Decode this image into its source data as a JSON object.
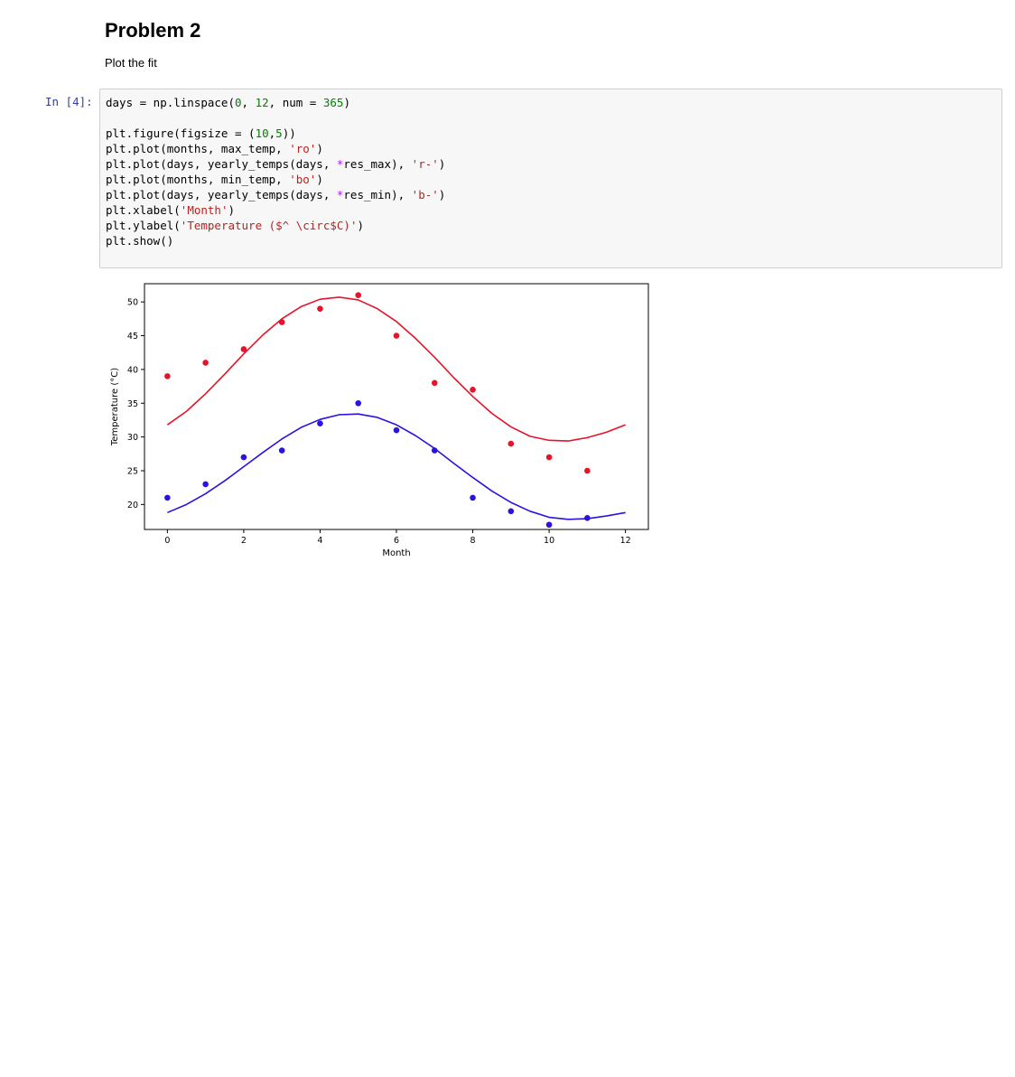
{
  "heading": "Problem 2",
  "description": "Plot the fit",
  "cell": {
    "prompt": "In [4]:",
    "code_lines": [
      [
        {
          "t": "days = np.linspace("
        },
        {
          "t": "0",
          "c": "num"
        },
        {
          "t": ", "
        },
        {
          "t": "12",
          "c": "num"
        },
        {
          "t": ", num = "
        },
        {
          "t": "365",
          "c": "num"
        },
        {
          "t": ")"
        }
      ],
      [],
      [
        {
          "t": "plt.figure(figsize = ("
        },
        {
          "t": "10",
          "c": "num"
        },
        {
          "t": ","
        },
        {
          "t": "5",
          "c": "num"
        },
        {
          "t": "))"
        }
      ],
      [
        {
          "t": "plt.plot(months, max_temp, "
        },
        {
          "t": "'ro'",
          "c": "str"
        },
        {
          "t": ")"
        }
      ],
      [
        {
          "t": "plt.plot(days, yearly_temps(days, "
        },
        {
          "t": "*",
          "c": "op"
        },
        {
          "t": "res_max), "
        },
        {
          "t": "'r-'",
          "c": "str"
        },
        {
          "t": ")"
        }
      ],
      [
        {
          "t": "plt.plot(months, min_temp, "
        },
        {
          "t": "'bo'",
          "c": "str"
        },
        {
          "t": ")"
        }
      ],
      [
        {
          "t": "plt.plot(days, yearly_temps(days, "
        },
        {
          "t": "*",
          "c": "op"
        },
        {
          "t": "res_min), "
        },
        {
          "t": "'b-'",
          "c": "str"
        },
        {
          "t": ")"
        }
      ],
      [
        {
          "t": "plt.xlabel("
        },
        {
          "t": "'Month'",
          "c": "str"
        },
        {
          "t": ")"
        }
      ],
      [
        {
          "t": "plt.ylabel("
        },
        {
          "t": "'Temperature ($^ \\circ$C)'",
          "c": "str"
        },
        {
          "t": ")"
        }
      ],
      [
        {
          "t": "plt.show()"
        }
      ]
    ]
  },
  "colors": {
    "max_series": "#e6132b",
    "min_series": "#2b12e0",
    "prompt": "#303f9f"
  },
  "chart_data": {
    "type": "scatter",
    "xlabel": "Month",
    "ylabel": "Temperature (°C)",
    "xlim": [
      -0.6,
      12.6
    ],
    "ylim": [
      16.3,
      52.7
    ],
    "xticks": [
      0,
      2,
      4,
      6,
      8,
      10,
      12
    ],
    "yticks": [
      20,
      25,
      30,
      35,
      40,
      45,
      50
    ],
    "grid": false,
    "legend": "none",
    "series": [
      {
        "key": "max-points",
        "style": "markers",
        "color": "#e6132b",
        "x": [
          0,
          1,
          2,
          3,
          4,
          5,
          6,
          7,
          8,
          9,
          10,
          11
        ],
        "y": [
          39,
          41,
          43,
          47,
          49,
          51,
          45,
          38,
          37,
          29,
          27,
          25
        ]
      },
      {
        "key": "max-fit",
        "style": "line",
        "color": "#e6132b",
        "x": [
          0,
          0.5,
          1,
          1.5,
          2,
          2.5,
          3,
          3.5,
          4,
          4.5,
          5,
          5.5,
          6,
          6.5,
          7,
          7.5,
          8,
          8.5,
          9,
          9.5,
          10,
          10.5,
          11,
          11.5,
          12
        ],
        "y": [
          31.8,
          33.8,
          36.4,
          39.3,
          42.3,
          45.1,
          47.5,
          49.3,
          50.4,
          50.7,
          50.3,
          49.0,
          47.1,
          44.6,
          41.8,
          38.8,
          36.0,
          33.5,
          31.5,
          30.1,
          29.5,
          29.4,
          29.9,
          30.7,
          31.8
        ]
      },
      {
        "key": "min-points",
        "style": "markers",
        "color": "#2b12e0",
        "x": [
          0,
          1,
          2,
          3,
          4,
          5,
          6,
          7,
          8,
          9,
          10,
          11
        ],
        "y": [
          21,
          23,
          27,
          28,
          32,
          35,
          31,
          28,
          21,
          19,
          17,
          18
        ]
      },
      {
        "key": "min-fit",
        "style": "line",
        "color": "#2b12e0",
        "x": [
          0,
          0.5,
          1,
          1.5,
          2,
          2.5,
          3,
          3.5,
          4,
          4.5,
          5,
          5.5,
          6,
          6.5,
          7,
          7.5,
          8,
          8.5,
          9,
          9.5,
          10,
          10.5,
          11,
          11.5,
          12
        ],
        "y": [
          18.8,
          20.0,
          21.6,
          23.5,
          25.6,
          27.7,
          29.7,
          31.4,
          32.6,
          33.3,
          33.4,
          32.9,
          31.8,
          30.2,
          28.3,
          26.1,
          24.0,
          22.0,
          20.3,
          19.0,
          18.1,
          17.8,
          17.9,
          18.3,
          18.8
        ]
      }
    ]
  }
}
